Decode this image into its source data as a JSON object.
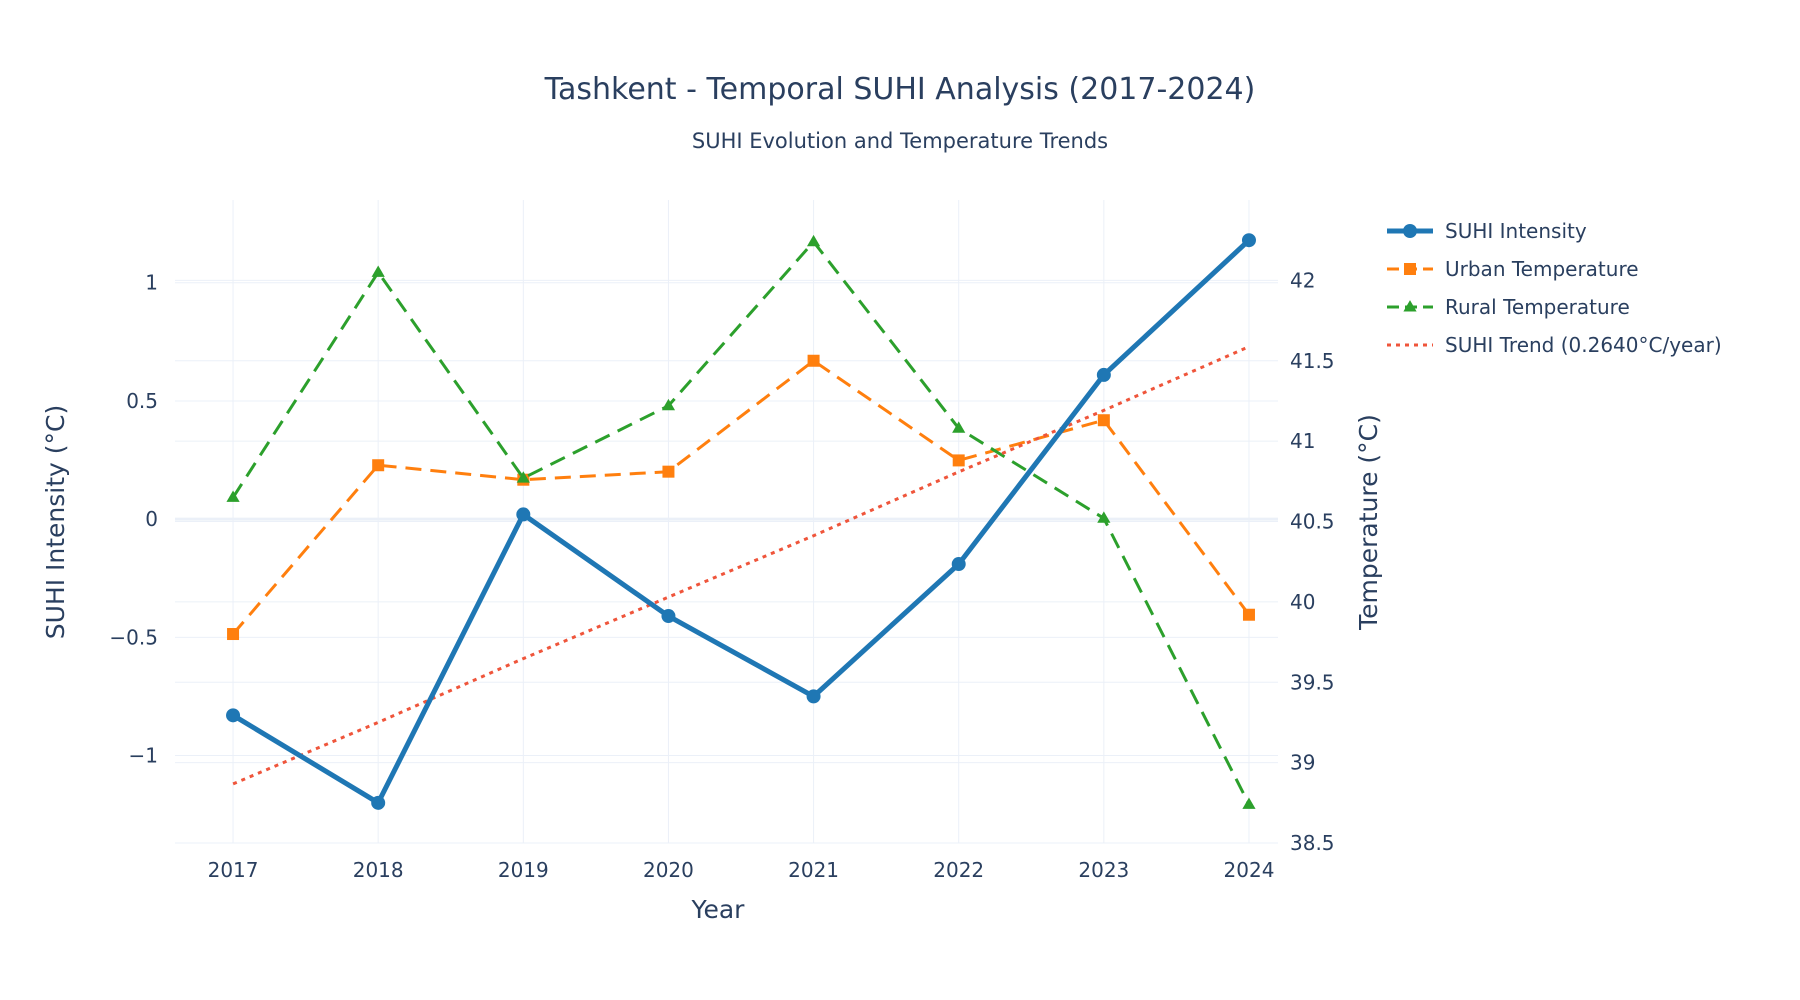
{
  "chart_data": {
    "type": "line",
    "title": "Tashkent - Temporal SUHI Analysis (2017-2024)",
    "subtitle": "SUHI Evolution and Temperature Trends",
    "xlabel": "Year",
    "ylabel": "SUHI Intensity (°C)",
    "y2label": "Temperature (°C)",
    "x": [
      2017,
      2018,
      2019,
      2020,
      2021,
      2022,
      2023,
      2024
    ],
    "xlim": [
      2016.6,
      2024.2
    ],
    "ylim": [
      -1.37,
      1.35
    ],
    "y2lim": [
      38.5,
      42.5
    ],
    "y_ticks": [
      1,
      0.5,
      0,
      -0.5,
      -1
    ],
    "y_tick_labels": [
      "1",
      "0.5",
      "0",
      "−0.5",
      "−1"
    ],
    "y2_ticks": [
      38.5,
      39,
      39.5,
      40,
      40.5,
      41,
      41.5,
      42
    ],
    "y2_tick_labels": [
      "38.5",
      "39",
      "39.5",
      "40",
      "40.5",
      "41",
      "41.5",
      "42"
    ],
    "grid": true,
    "legend_position": "top-right outside",
    "series": [
      {
        "name": "SUHI Intensity",
        "axis": "left",
        "color": "#1f77b4",
        "style": "solid",
        "marker": "circle",
        "values": [
          -0.83,
          -1.2,
          0.02,
          -0.41,
          -0.75,
          -0.19,
          0.61,
          1.18
        ]
      },
      {
        "name": "Urban Temperature",
        "axis": "right",
        "color": "#ff7f0e",
        "style": "dash",
        "marker": "square",
        "values": [
          39.8,
          40.85,
          40.76,
          40.81,
          41.5,
          40.88,
          41.13,
          39.92
        ]
      },
      {
        "name": "Rural Temperature",
        "axis": "right",
        "color": "#2ca02c",
        "style": "dash",
        "marker": "triangle-up",
        "values": [
          40.65,
          42.05,
          40.77,
          41.22,
          42.24,
          41.08,
          40.52,
          38.74
        ]
      },
      {
        "name": "SUHI Trend (0.2640°C/year)",
        "axis": "left",
        "color": "#ef553b",
        "style": "dot",
        "marker": "none",
        "values": [
          -1.12,
          -0.86,
          -0.59,
          -0.33,
          -0.07,
          0.2,
          0.46,
          0.73
        ]
      }
    ]
  }
}
